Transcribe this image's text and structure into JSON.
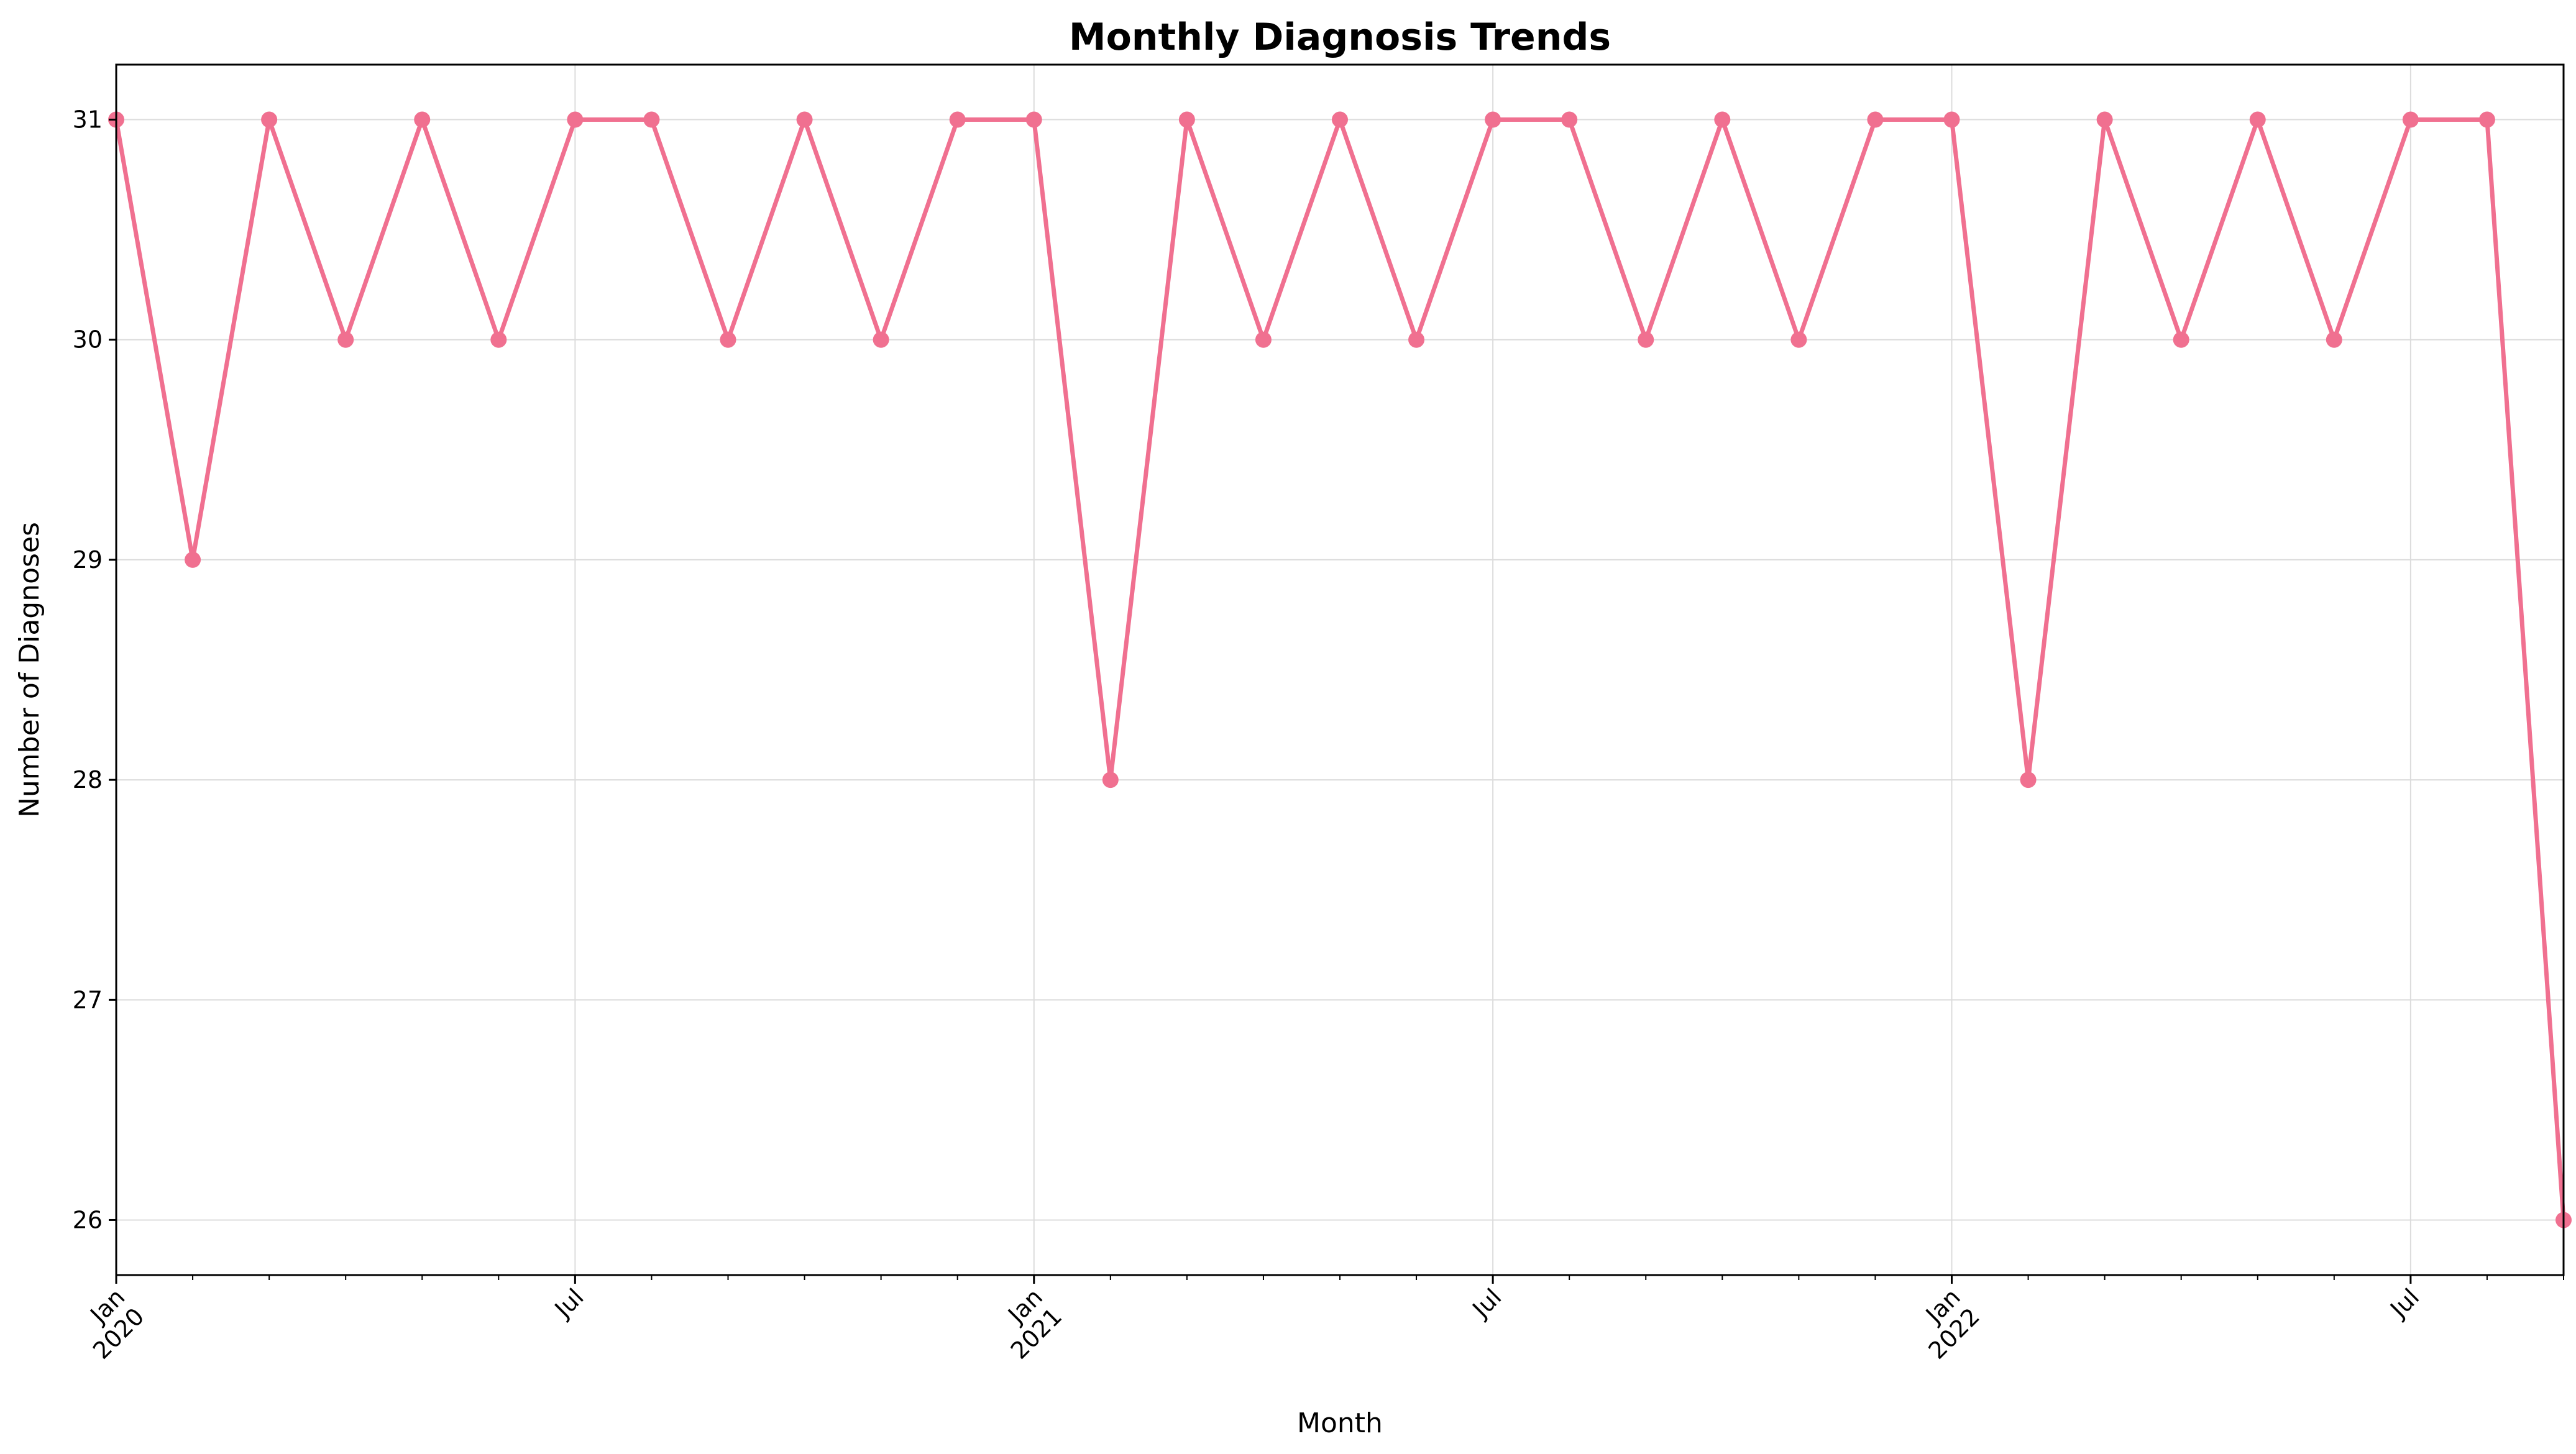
{
  "chart_data": {
    "type": "line",
    "title": "Monthly Diagnosis Trends",
    "xlabel": "Month",
    "ylabel": "Number of Diagnoses",
    "x": [
      "2020-01",
      "2020-02",
      "2020-03",
      "2020-04",
      "2020-05",
      "2020-06",
      "2020-07",
      "2020-08",
      "2020-09",
      "2020-10",
      "2020-11",
      "2020-12",
      "2021-01",
      "2021-02",
      "2021-03",
      "2021-04",
      "2021-05",
      "2021-06",
      "2021-07",
      "2021-08",
      "2021-09",
      "2021-10",
      "2021-11",
      "2021-12",
      "2022-01",
      "2022-02",
      "2022-03",
      "2022-04",
      "2022-05",
      "2022-06",
      "2022-07",
      "2022-08",
      "2022-09"
    ],
    "series": [
      {
        "values": [
          31,
          29,
          31,
          30,
          31,
          30,
          31,
          31,
          30,
          31,
          30,
          31,
          31,
          28,
          31,
          30,
          31,
          30,
          31,
          31,
          30,
          31,
          30,
          31,
          31,
          28,
          31,
          30,
          31,
          30,
          31,
          31,
          26
        ]
      }
    ],
    "ylim": [
      25.75,
      31.25
    ],
    "yticks": [
      26,
      27,
      28,
      29,
      30,
      31
    ],
    "xticks": [
      {
        "date": "2020-01",
        "label": "Jan",
        "year": "2020"
      },
      {
        "date": "2020-07",
        "label": "Jul",
        "year": ""
      },
      {
        "date": "2021-01",
        "label": "Jan",
        "year": "2021"
      },
      {
        "date": "2021-07",
        "label": "Jul",
        "year": ""
      },
      {
        "date": "2022-01",
        "label": "Jan",
        "year": "2022"
      },
      {
        "date": "2022-07",
        "label": "Jul",
        "year": ""
      }
    ],
    "grid": true,
    "line_color": "#f07090",
    "marker": "circle"
  }
}
